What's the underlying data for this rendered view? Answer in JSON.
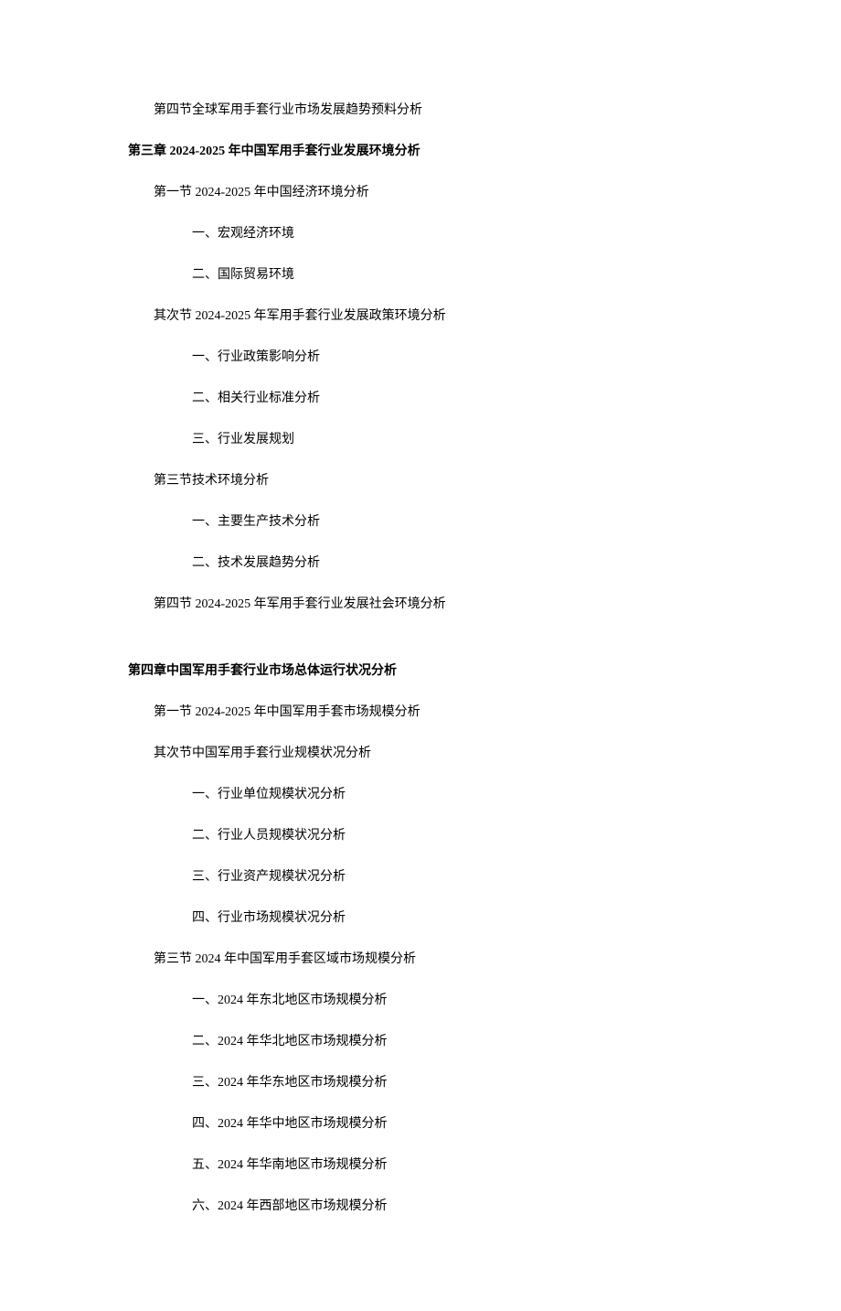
{
  "lines": [
    {
      "text": "第四节全球军用手套行业市场发展趋势预料分析",
      "cls": "line indent-1"
    },
    {
      "text": "第三章 2024-2025 年中国军用手套行业发展环境分析",
      "cls": "chapter"
    },
    {
      "text": "第一节 2024-2025 年中国经济环境分析",
      "cls": "line indent-1"
    },
    {
      "text": "一、宏观经济环境",
      "cls": "line indent-2"
    },
    {
      "text": "二、国际贸易环境",
      "cls": "line indent-2"
    },
    {
      "text": "其次节 2024-2025 年军用手套行业发展政策环境分析",
      "cls": "line indent-1"
    },
    {
      "text": "一、行业政策影响分析",
      "cls": "line indent-2"
    },
    {
      "text": "二、相关行业标准分析",
      "cls": "line indent-2"
    },
    {
      "text": "三、行业发展规划",
      "cls": "line indent-2"
    },
    {
      "text": "第三节技术环境分析",
      "cls": "line indent-1"
    },
    {
      "text": "一、主要生产技术分析",
      "cls": "line indent-2"
    },
    {
      "text": "二、技术发展趋势分析",
      "cls": "line indent-2"
    },
    {
      "text": "第四节 2024-2025 年军用手套行业发展社会环境分析",
      "cls": "line indent-1"
    },
    {
      "text": "",
      "cls": "spacer"
    },
    {
      "text": "第四章中国军用手套行业市场总体运行状况分析",
      "cls": "chapter"
    },
    {
      "text": "第一节 2024-2025 年中国军用手套市场规模分析",
      "cls": "line indent-1"
    },
    {
      "text": "其次节中国军用手套行业规模状况分析",
      "cls": "line indent-1"
    },
    {
      "text": "一、行业单位规模状况分析",
      "cls": "line indent-2"
    },
    {
      "text": "二、行业人员规模状况分析",
      "cls": "line indent-2"
    },
    {
      "text": "三、行业资产规模状况分析",
      "cls": "line indent-2"
    },
    {
      "text": "四、行业市场规模状况分析",
      "cls": "line indent-2"
    },
    {
      "text": "第三节 2024 年中国军用手套区域市场规模分析",
      "cls": "line indent-1"
    },
    {
      "text": "一、2024 年东北地区市场规模分析",
      "cls": "line indent-2"
    },
    {
      "text": "二、2024 年华北地区市场规模分析",
      "cls": "line indent-2"
    },
    {
      "text": "三、2024 年华东地区市场规模分析",
      "cls": "line indent-2"
    },
    {
      "text": "四、2024 年华中地区市场规模分析",
      "cls": "line indent-2"
    },
    {
      "text": "五、2024 年华南地区市场规模分析",
      "cls": "line indent-2"
    },
    {
      "text": "六、2024 年西部地区市场规模分析",
      "cls": "line indent-2"
    }
  ]
}
